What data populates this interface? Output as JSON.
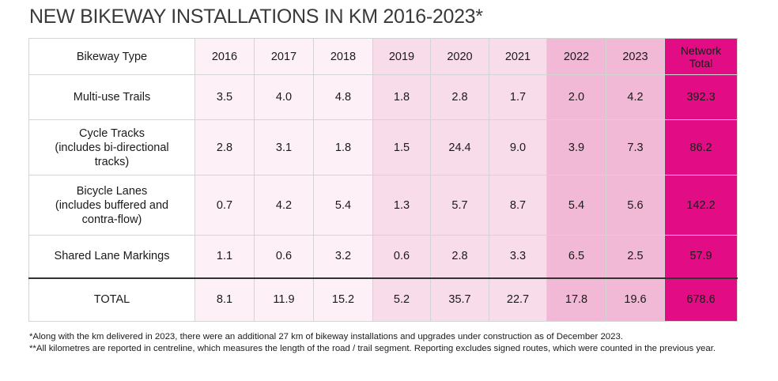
{
  "chart_data": {
    "type": "table",
    "title": "NEW BIKEWAY INSTALLATIONS IN KM 2016-2023*",
    "header": {
      "label_col": "Bikeway Type",
      "years": [
        "2016",
        "2017",
        "2018",
        "2019",
        "2020",
        "2021",
        "2022",
        "2023"
      ],
      "total_line1": "Network",
      "total_line2": "Total"
    },
    "rows": [
      {
        "label": [
          "Multi-use Trails"
        ],
        "values": [
          "3.5",
          "4.0",
          "4.8",
          "1.8",
          "2.8",
          "1.7",
          "2.0",
          "4.2"
        ],
        "total": "392.3"
      },
      {
        "label": [
          "Cycle Tracks",
          "(includes bi-directional",
          "tracks)"
        ],
        "values": [
          "2.8",
          "3.1",
          "1.8",
          "1.5",
          "24.4",
          "9.0",
          "3.9",
          "7.3"
        ],
        "total": "86.2"
      },
      {
        "label": [
          "Bicycle Lanes",
          "(includes buffered and",
          "contra-flow)"
        ],
        "values": [
          "0.7",
          "4.2",
          "5.4",
          "1.3",
          "5.7",
          "8.7",
          "5.4",
          "5.6"
        ],
        "total": "142.2"
      },
      {
        "label": [
          "Shared Lane Markings"
        ],
        "values": [
          "1.1",
          "0.6",
          "3.2",
          "0.6",
          "2.8",
          "3.3",
          "6.5",
          "2.5"
        ],
        "total": "57.9"
      },
      {
        "label": [
          "TOTAL"
        ],
        "values": [
          "8.1",
          "11.9",
          "15.2",
          "5.2",
          "35.7",
          "22.7",
          "17.8",
          "19.6"
        ],
        "total": "678.6"
      }
    ],
    "column_colors": [
      "#ffffff",
      "#fdf0f6",
      "#fdf0f6",
      "#fdf0f6",
      "#f9dcea",
      "#f9dcea",
      "#f9dcea",
      "#f2b9d6",
      "#f2b9d6",
      "#e20d84"
    ]
  },
  "footnotes": [
    "*Along with the km delivered in 2023, there were an additional 27 km of bikeway installations and upgrades under construction as of December 2023.",
    "**All kilometres are reported in centreline, which measures the length of the road / trail segment. Reporting excludes signed routes, which were counted in the previous year."
  ]
}
